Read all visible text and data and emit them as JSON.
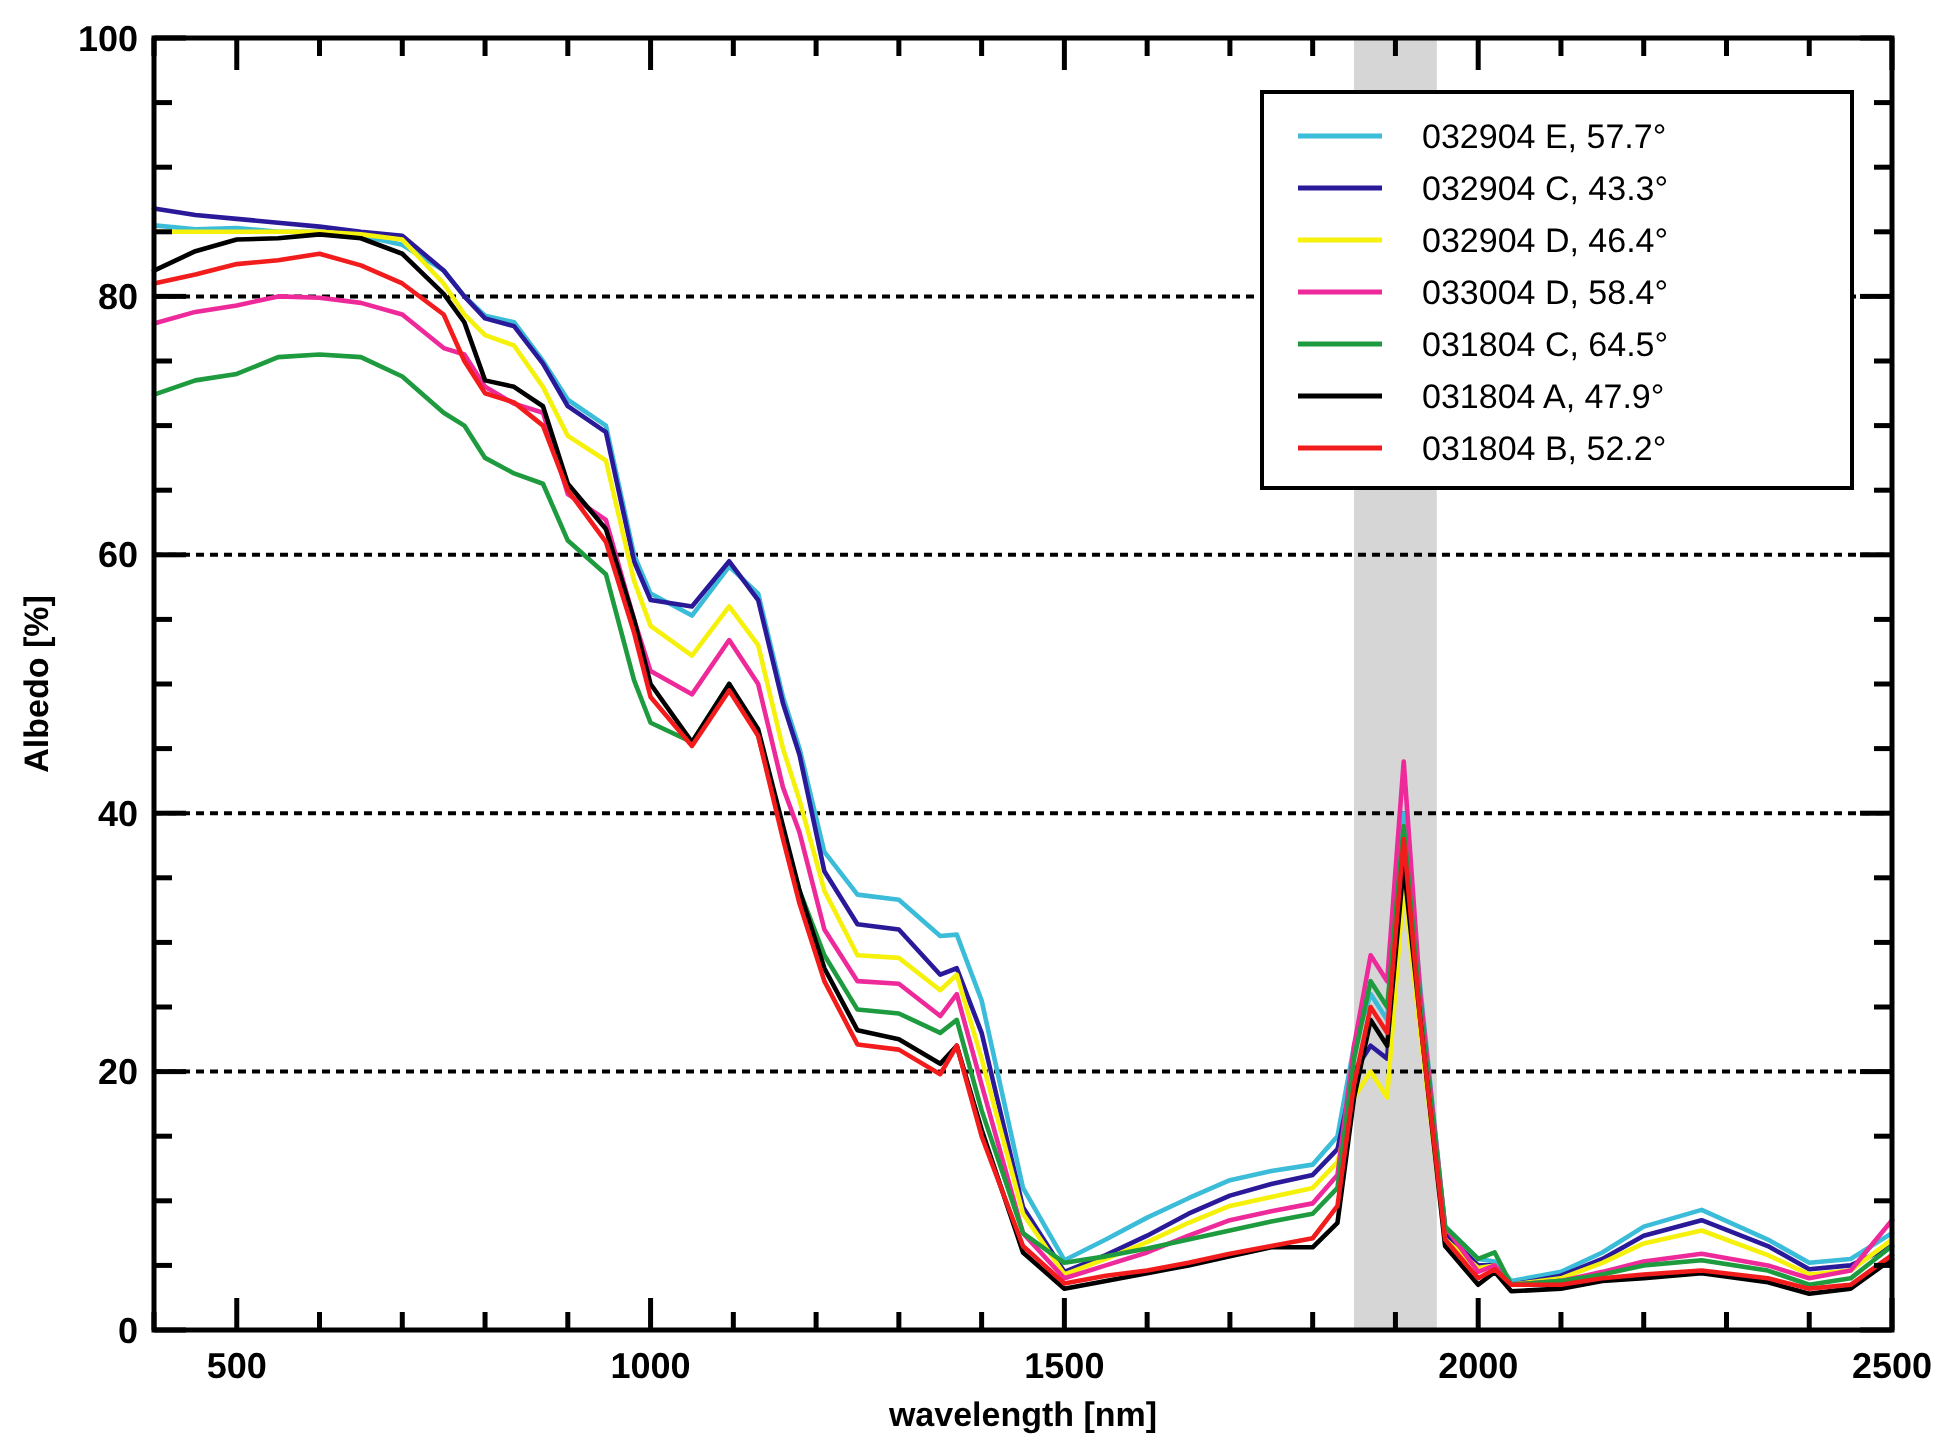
{
  "chart_data": {
    "type": "line",
    "xlabel": "wavelength [nm]",
    "ylabel": "Albedo [%]",
    "xlim": [
      400,
      2500
    ],
    "ylim": [
      0,
      100
    ],
    "xticks": [
      {
        "value": 400,
        "label": null
      },
      500,
      {
        "value": 600,
        "label": null
      },
      {
        "value": 700,
        "label": null
      },
      {
        "value": 800,
        "label": null
      },
      {
        "value": 900,
        "label": null
      },
      1000,
      {
        "value": 1100,
        "label": null
      },
      {
        "value": 1200,
        "label": null
      },
      {
        "value": 1300,
        "label": null
      },
      {
        "value": 1400,
        "label": null
      },
      1500,
      {
        "value": 1600,
        "label": null
      },
      {
        "value": 1700,
        "label": null
      },
      {
        "value": 1800,
        "label": null
      },
      {
        "value": 1900,
        "label": null
      },
      2000,
      {
        "value": 2100,
        "label": null
      },
      {
        "value": 2200,
        "label": null
      },
      {
        "value": 2300,
        "label": null
      },
      {
        "value": 2400,
        "label": null
      },
      2500
    ],
    "yticks": [
      0,
      {
        "value": 5,
        "label": null
      },
      {
        "value": 10,
        "label": null
      },
      {
        "value": 15,
        "label": null
      },
      20,
      {
        "value": 25,
        "label": null
      },
      {
        "value": 30,
        "label": null
      },
      {
        "value": 35,
        "label": null
      },
      40,
      {
        "value": 45,
        "label": null
      },
      {
        "value": 50,
        "label": null
      },
      {
        "value": 55,
        "label": null
      },
      60,
      {
        "value": 65,
        "label": null
      },
      {
        "value": 70,
        "label": null
      },
      {
        "value": 75,
        "label": null
      },
      80,
      {
        "value": 85,
        "label": null
      },
      {
        "value": 90,
        "label": null
      },
      {
        "value": 95,
        "label": null
      },
      100
    ],
    "grid": "y",
    "legend": "top right",
    "line_style": "solid",
    "bands": [
      {
        "axis": "x",
        "from": 1850,
        "to": 1950,
        "color": "#d6d6d6"
      }
    ],
    "x": [
      400,
      450,
      500,
      550,
      600,
      650,
      700,
      750,
      775,
      800,
      835,
      870,
      900,
      946,
      980,
      1000,
      1050,
      1095,
      1130,
      1160,
      1180,
      1210,
      1250,
      1300,
      1350,
      1370,
      1400,
      1450,
      1500,
      1550,
      1600,
      1650,
      1700,
      1750,
      1800,
      1830,
      1850,
      1870,
      1890,
      1910,
      1930,
      1960,
      2000,
      2020,
      2040,
      2100,
      2150,
      2200,
      2270,
      2350,
      2400,
      2450,
      2500
    ],
    "series": [
      {
        "name": "032904 E, 57.7°",
        "color": "#3bbcd8",
        "values": [
          85.5,
          85.2,
          85.3,
          85,
          85,
          84.7,
          84,
          82,
          80,
          78.5,
          78,
          75,
          72,
          70,
          60,
          57,
          55.3,
          59.1,
          57,
          49,
          45,
          37,
          33.7,
          33.3,
          30.5,
          30.6,
          25.5,
          11,
          5.4,
          7,
          8.7,
          10.2,
          11.6,
          12.3,
          12.8,
          15,
          22,
          26,
          24,
          40,
          26.5,
          8,
          5.5,
          5.3,
          3.8,
          4.5,
          6,
          8,
          9.3,
          7,
          5.2,
          5.5,
          7.5
        ]
      },
      {
        "name": "032904 C, 43.3°",
        "color": "#2a1a9a",
        "values": [
          86.8,
          86.3,
          86,
          85.7,
          85.4,
          85,
          84.7,
          82,
          80,
          78.3,
          77.7,
          74.8,
          71.5,
          69.5,
          59.5,
          56.5,
          56,
          59.5,
          56.5,
          48.5,
          44.5,
          35.5,
          31.4,
          31,
          27.5,
          28,
          23,
          9.5,
          4.5,
          5.8,
          7.3,
          9,
          10.4,
          11.3,
          12,
          14,
          20,
          22,
          21,
          38,
          24,
          7.5,
          5,
          5,
          3.5,
          4.2,
          5.5,
          7.3,
          8.5,
          6.5,
          4.7,
          5,
          6.5
        ]
      },
      {
        "name": "032904 D, 46.4°",
        "color": "#f5f10a",
        "values": [
          85,
          85,
          85,
          85,
          85,
          84.8,
          84.4,
          81,
          78.6,
          77,
          76.2,
          73,
          69.2,
          67.3,
          58,
          54.5,
          52.2,
          56,
          53,
          45,
          41,
          34,
          29,
          28.8,
          26.3,
          27.5,
          21,
          9,
          4.3,
          5.5,
          6.8,
          8.3,
          9.6,
          10.3,
          11,
          13,
          18,
          20,
          18,
          34.5,
          23,
          7,
          4.8,
          5,
          3.5,
          4,
          5.2,
          6.7,
          7.7,
          5.8,
          4.3,
          4.6,
          7
        ]
      },
      {
        "name": "033004 D, 58.4°",
        "color": "#ee2a9b",
        "values": [
          77.9,
          78.8,
          79.3,
          80,
          79.9,
          79.5,
          78.6,
          76,
          75.5,
          73,
          71.7,
          71,
          64.7,
          62.7,
          55,
          51,
          49.2,
          53.4,
          50,
          42,
          38.5,
          31,
          27,
          26.8,
          24.3,
          26,
          19,
          7.5,
          4,
          5,
          6,
          7.3,
          8.5,
          9.2,
          9.8,
          12,
          22,
          29,
          27,
          44,
          26,
          8,
          4.5,
          5,
          3.5,
          3.8,
          4.5,
          5.3,
          5.9,
          5,
          4,
          4.6,
          8.5
        ]
      },
      {
        "name": "031804 C, 64.5°",
        "color": "#1e9a3f",
        "values": [
          72.4,
          73.5,
          74,
          75.3,
          75.5,
          75.3,
          73.8,
          71,
          70,
          67.5,
          66.3,
          65.5,
          61.1,
          58.5,
          50.3,
          47,
          45.5,
          50,
          46,
          38.5,
          34,
          29,
          24.8,
          24.5,
          23,
          24,
          17,
          7.5,
          5.2,
          5.7,
          6.3,
          7,
          7.7,
          8.4,
          9,
          11,
          21,
          27,
          25,
          39,
          25,
          8,
          5.5,
          6,
          3.5,
          3.8,
          4.3,
          5,
          5.4,
          4.6,
          3.5,
          4,
          6.5
        ]
      },
      {
        "name": "031804 A, 47.9°",
        "color": "#000000",
        "values": [
          82,
          83.5,
          84.4,
          84.5,
          84.8,
          84.5,
          83.3,
          80.2,
          78,
          73.5,
          73,
          71.5,
          65.5,
          62,
          55,
          50,
          45.5,
          50,
          46.5,
          39,
          34,
          28,
          23.2,
          22.5,
          20.6,
          22,
          15.5,
          6,
          3.2,
          3.8,
          4.4,
          5,
          5.7,
          6.4,
          6.4,
          8.3,
          18,
          24,
          22,
          36,
          24,
          6.5,
          3.5,
          4.5,
          3,
          3.2,
          3.8,
          4,
          4.4,
          3.7,
          2.8,
          3.2,
          5.5
        ]
      },
      {
        "name": "031804 B, 52.2°",
        "color": "#f21c1c",
        "values": [
          81,
          81.7,
          82.5,
          82.8,
          83.3,
          82.4,
          81,
          78.6,
          75,
          72.5,
          71.8,
          70,
          65,
          61,
          54,
          49,
          45.2,
          49.5,
          46,
          38,
          33,
          27,
          22.1,
          21.7,
          19.8,
          22,
          15,
          6.5,
          3.6,
          4.2,
          4.6,
          5.2,
          5.9,
          6.5,
          7.1,
          9.6,
          19,
          25,
          23,
          38,
          24,
          7,
          4,
          4.7,
          3.5,
          3.5,
          4,
          4.3,
          4.6,
          4,
          3.2,
          3.5,
          5.8
        ]
      }
    ]
  }
}
